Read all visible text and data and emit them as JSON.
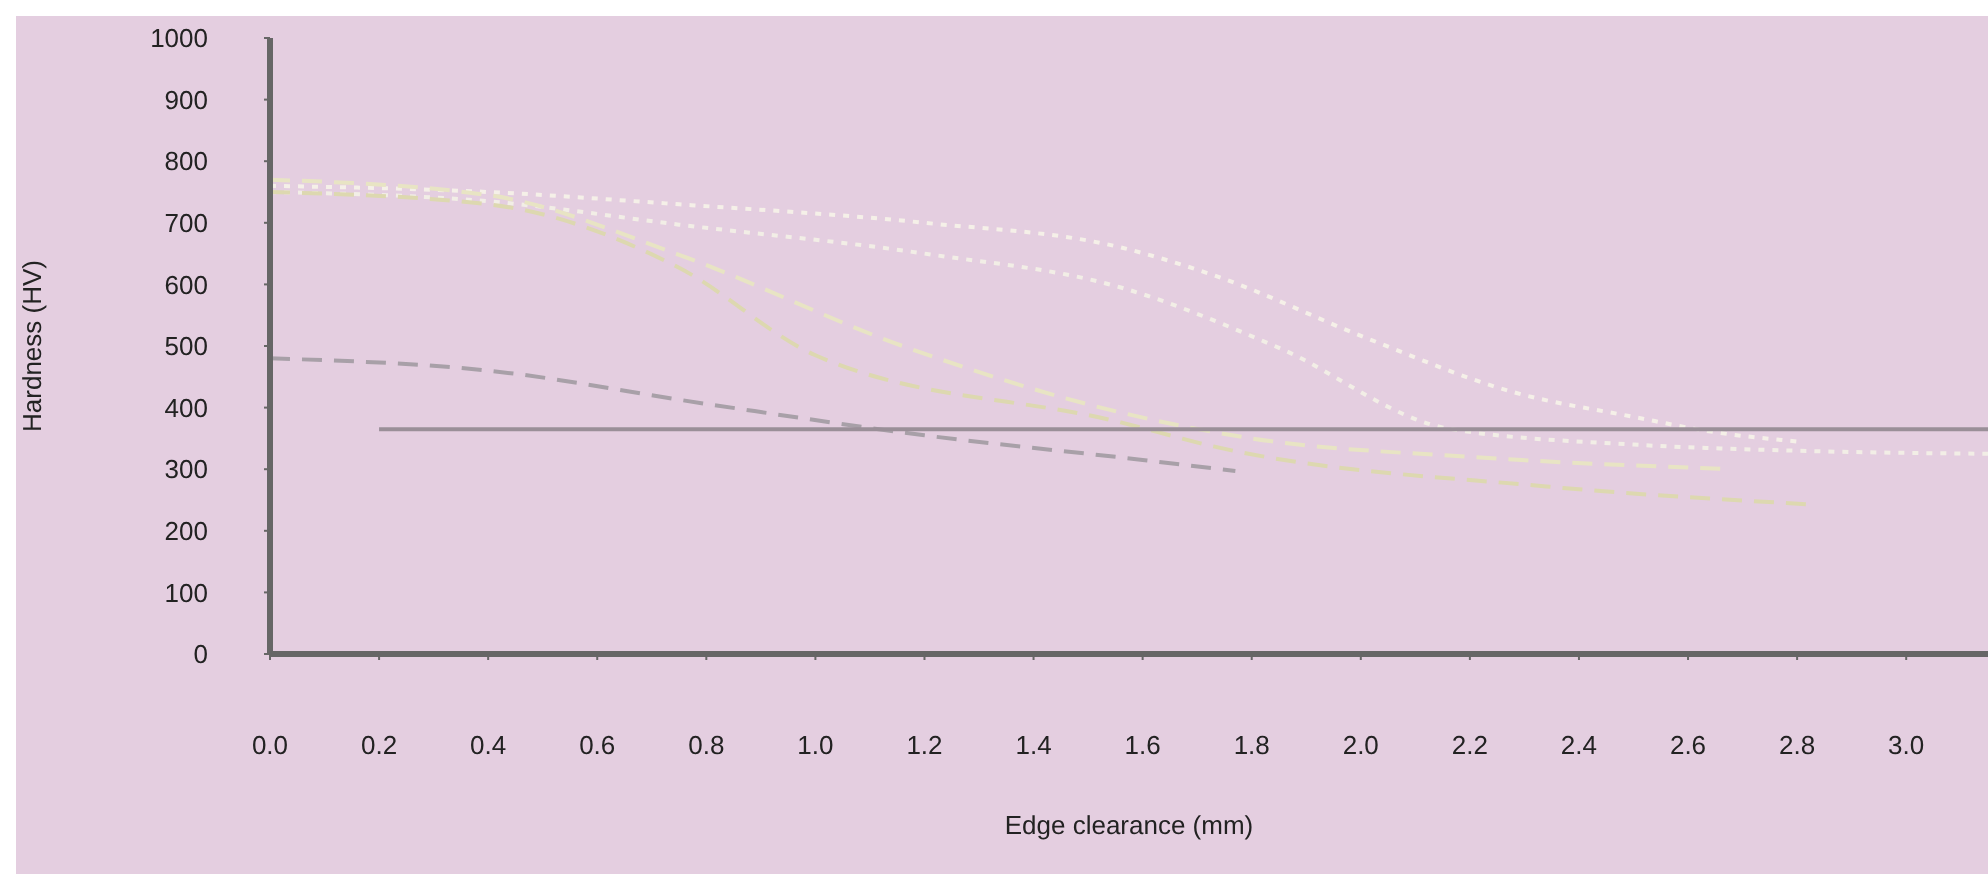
{
  "chart_data": {
    "type": "line",
    "xlabel": "Edge clearance (mm)",
    "ylabel": "Hardness (HV)",
    "xlim": [
      0,
      3.15
    ],
    "xticks": [
      {
        "value": 0,
        "label": "0.0"
      },
      {
        "value": 0.2,
        "label": "0.2"
      },
      {
        "value": 0.4,
        "label": "0.4"
      },
      {
        "value": 0.6,
        "label": "0.6"
      },
      {
        "value": 0.8,
        "label": "0.8"
      },
      {
        "value": 1,
        "label": "1.0"
      },
      {
        "value": 1.2,
        "label": "1.2"
      },
      {
        "value": 1.4,
        "label": "1.4"
      },
      {
        "value": 1.6,
        "label": "1.6"
      },
      {
        "value": 1.8,
        "label": "1.8"
      },
      {
        "value": 2,
        "label": "2.0"
      },
      {
        "value": 2.2,
        "label": "2.2"
      },
      {
        "value": 2.4,
        "label": "2.4"
      },
      {
        "value": 2.6,
        "label": "2.6"
      },
      {
        "value": 2.8,
        "label": "2.8"
      },
      {
        "value": 3,
        "label": "3.0"
      }
    ],
    "ylim": [
      0,
      1000
    ],
    "yticks": [
      0,
      100,
      200,
      300,
      400,
      500,
      600,
      700,
      800,
      900,
      1000
    ],
    "grid": false,
    "legend": false,
    "marker": "none",
    "series": [
      {
        "color": "#a8a0a8",
        "line_style": "dashed",
        "x": [
          0,
          0.4,
          0.8,
          1.2,
          1.6,
          1.77
        ],
        "values": [
          480,
          460,
          406,
          355,
          315,
          297
        ]
      },
      {
        "color": "#f5f0e8",
        "line_style": "dotted",
        "x": [
          0,
          0.4,
          0.75,
          1.2,
          1.56,
          1.73,
          2.01,
          2.28,
          2.5,
          2.65,
          2.8
        ],
        "values": [
          760,
          750,
          730,
          700,
          660,
          615,
          513,
          425,
          385,
          360,
          345
        ]
      },
      {
        "color": "#f2eee6",
        "line_style": "dotted",
        "x": [
          0,
          0.4,
          0.75,
          1.2,
          1.56,
          1.85,
          2.16,
          2.5,
          2.8,
          3.15
        ],
        "values": [
          750,
          735,
          697,
          650,
          595,
          497,
          366,
          340,
          330,
          325
        ]
      },
      {
        "color": "#e8e4c4",
        "line_style": "dashed",
        "x": [
          0,
          0.4,
          0.75,
          1.16,
          1.56,
          1.8,
          2.2,
          2.68
        ],
        "values": [
          770,
          745,
          648,
          500,
          392,
          350,
          320,
          300
        ]
      },
      {
        "color": "#ddd8b0",
        "line_style": "dashed",
        "x": [
          0,
          0.4,
          0.75,
          1,
          1.56,
          1.73,
          2.34,
          2.82
        ],
        "values": [
          750,
          730,
          627,
          485,
          376,
          337,
          272,
          243
        ]
      },
      {
        "type": "line",
        "color": "#9a8f98",
        "line_style": "solid",
        "x": [
          0.2,
          3.15
        ],
        "values": [
          365,
          365
        ]
      }
    ]
  }
}
